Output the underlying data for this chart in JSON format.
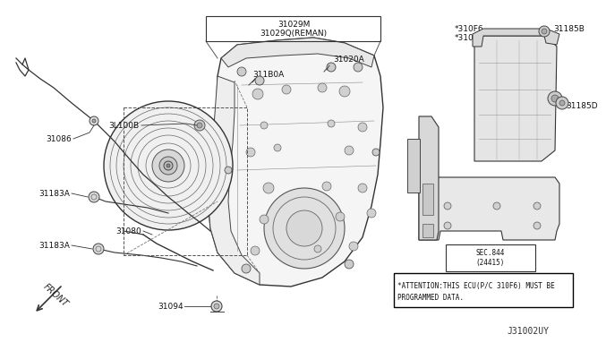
{
  "bg_color": "#ffffff",
  "diagram_code": "J31002UY",
  "attention_text": "*ATTENTION:THIS ECU(P/C 310F6) MUST BE\nPROGRAMMED DATA.",
  "sec_text": "SEC.844\n(24415)",
  "top_box_label1": "31029M",
  "top_box_label2": "31029Q(REMAN)",
  "label_31020A": "31020A",
  "label_31180A": "311B0A",
  "label_31100B": "3L100B",
  "label_31086": "31086",
  "label_31183A_1": "31183A",
  "label_31183A_2": "31183A",
  "label_31080": "31080",
  "label_31094": "31094",
  "label_310F6": "*310F6",
  "label_31039": "*31039",
  "label_31185B": "31185B",
  "label_31185D": "31185D",
  "front_label": "FRONT",
  "lw_main": 0.8,
  "lw_thin": 0.5,
  "color_line": "#000000",
  "color_dash": "#555555"
}
